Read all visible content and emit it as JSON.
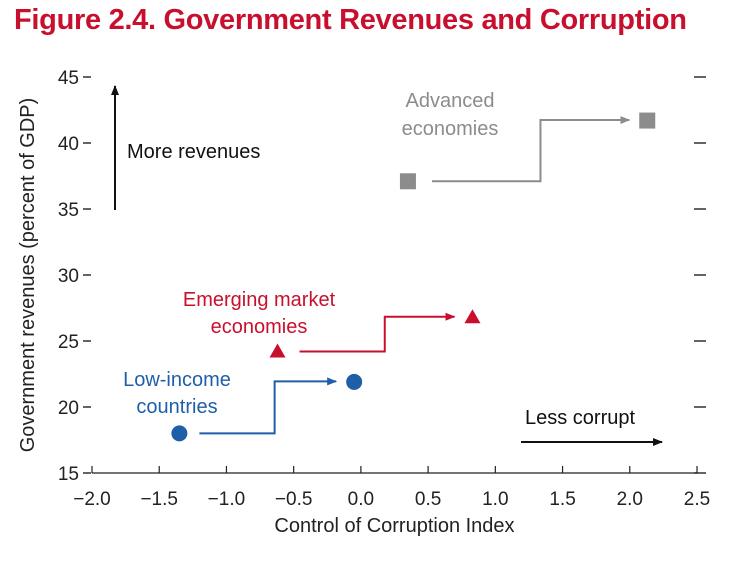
{
  "chart_data": {
    "type": "scatter",
    "title": "Figure 2.4. Government Revenues and Corruption",
    "xlabel": "Control of Corruption Index",
    "ylabel": "Government revenues (percent of GDP)",
    "xlim": [
      -2.0,
      2.5
    ],
    "ylim": [
      15,
      45
    ],
    "xticks": [
      "−2.0",
      "−1.5",
      "−1.0",
      "−0.5",
      "0.0",
      "0.5",
      "1.0",
      "1.5",
      "2.0",
      "2.5"
    ],
    "yticks": [
      "15",
      "20",
      "25",
      "30",
      "35",
      "40",
      "45"
    ],
    "series": [
      {
        "name": "Low-income countries",
        "label_lines": [
          "Low-income",
          "countries"
        ],
        "marker": "circle",
        "color": "#1f5fa8",
        "points": [
          {
            "x": -1.35,
            "y": 18.0
          },
          {
            "x": -0.05,
            "y": 21.9
          }
        ]
      },
      {
        "name": "Emerging market economies",
        "label_lines": [
          "Emerging market",
          "economies"
        ],
        "marker": "triangle",
        "color": "#c8102e",
        "points": [
          {
            "x": -0.62,
            "y": 24.2
          },
          {
            "x": 0.83,
            "y": 26.8
          }
        ]
      },
      {
        "name": "Advanced economies",
        "label_lines": [
          "Advanced",
          "economies"
        ],
        "marker": "square",
        "color": "#8c8c8c",
        "points": [
          {
            "x": 0.35,
            "y": 37.1
          },
          {
            "x": 2.13,
            "y": 41.7
          }
        ]
      }
    ],
    "annotations": {
      "up_arrow": "More revenues",
      "right_arrow": "Less corrupt"
    }
  }
}
